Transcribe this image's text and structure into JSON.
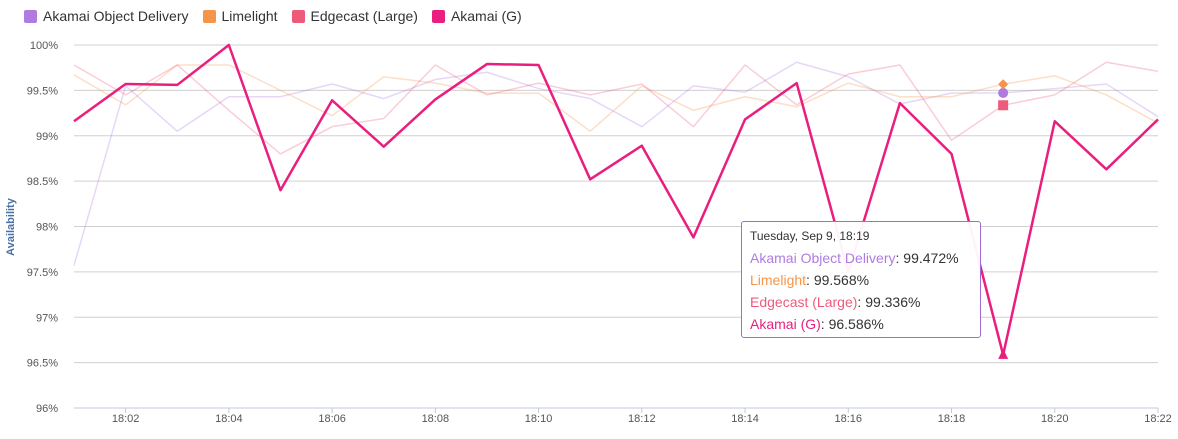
{
  "legend": [
    {
      "name": "Akamai Object Delivery",
      "color": "#b07be0"
    },
    {
      "name": "Limelight",
      "color": "#f4954a"
    },
    {
      "name": "Edgecast (Large)",
      "color": "#ef5a7a"
    },
    {
      "name": "Akamai (G)",
      "color": "#e91e7e"
    }
  ],
  "tooltip": {
    "title": "Tuesday, Sep 9, 18:19",
    "rows": [
      {
        "name": "Akamai Object Delivery",
        "value": "99.472%",
        "color": "#b07be0"
      },
      {
        "name": "Limelight",
        "value": "99.568%",
        "color": "#f4954a"
      },
      {
        "name": "Edgecast (Large)",
        "value": "99.336%",
        "color": "#ef5a7a"
      },
      {
        "name": "Akamai (G)",
        "value": "96.586%",
        "color": "#e91e7e"
      }
    ]
  },
  "chart_data": {
    "type": "line",
    "ylabel": "Availability",
    "ylim": [
      96,
      100
    ],
    "yticks": [
      "96%",
      "96.5%",
      "97%",
      "97.5%",
      "98%",
      "98.5%",
      "99%",
      "99.5%",
      "100%"
    ],
    "xticks": [
      "18:02",
      "18:04",
      "18:06",
      "18:08",
      "18:10",
      "18:12",
      "18:14",
      "18:16",
      "18:18",
      "18:20",
      "18:22"
    ],
    "x": [
      "18:01",
      "18:02",
      "18:03",
      "18:04",
      "18:05",
      "18:06",
      "18:07",
      "18:08",
      "18:09",
      "18:10",
      "18:11",
      "18:12",
      "18:13",
      "18:14",
      "18:15",
      "18:16",
      "18:17",
      "18:18",
      "18:19",
      "18:20",
      "18:21",
      "18:22"
    ],
    "grid": true,
    "legend_position": "top-left",
    "highlight_x": "18:19",
    "series": [
      {
        "name": "Akamai Object Delivery",
        "color": "#b07be0",
        "faded": true,
        "values": [
          97.57,
          99.55,
          99.05,
          99.43,
          99.43,
          99.57,
          99.41,
          99.62,
          99.7,
          99.52,
          99.41,
          99.1,
          99.55,
          99.48,
          99.81,
          99.65,
          99.35,
          99.47,
          99.472,
          99.52,
          99.57,
          99.21
        ]
      },
      {
        "name": "Limelight",
        "color": "#f4954a",
        "faded": true,
        "values": [
          99.67,
          99.34,
          99.78,
          99.78,
          99.5,
          99.22,
          99.65,
          99.58,
          99.47,
          99.47,
          99.05,
          99.55,
          99.28,
          99.43,
          99.32,
          99.58,
          99.43,
          99.43,
          99.568,
          99.66,
          99.45,
          99.14
        ]
      },
      {
        "name": "Edgecast (Large)",
        "color": "#ef5a7a",
        "faded": true,
        "values": [
          99.78,
          99.45,
          99.78,
          99.28,
          98.8,
          99.1,
          99.19,
          99.78,
          99.45,
          99.58,
          99.45,
          99.57,
          99.1,
          99.78,
          99.34,
          99.68,
          99.78,
          98.95,
          99.336,
          99.45,
          99.81,
          99.71
        ]
      },
      {
        "name": "Akamai (G)",
        "color": "#e91e7e",
        "faded": false,
        "values": [
          99.16,
          99.57,
          99.56,
          100.0,
          98.4,
          99.39,
          98.88,
          99.4,
          99.79,
          99.78,
          98.52,
          98.89,
          97.88,
          99.18,
          99.58,
          97.5,
          99.36,
          98.8,
          96.586,
          99.16,
          98.63,
          99.18
        ]
      }
    ]
  }
}
